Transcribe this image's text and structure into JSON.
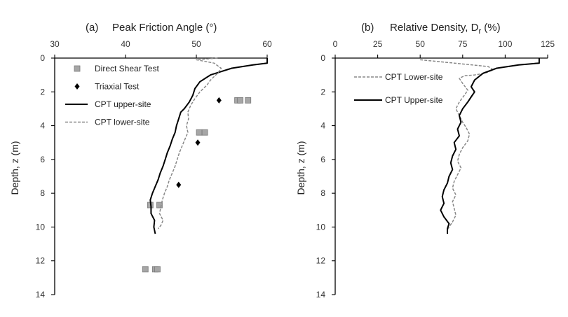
{
  "chart_data": [
    {
      "type": "line",
      "panel_label": "(a)",
      "title": "Peak Friction Angle (°)",
      "xlabel": "Peak Friction Angle (°)",
      "ylabel": "Depth, z  (m)",
      "x_axis_position": "top",
      "y_axis_inverted": true,
      "xlim": [
        30,
        60
      ],
      "ylim": [
        0,
        14
      ],
      "xticks": [
        30,
        40,
        50,
        60
      ],
      "yticks": [
        0,
        2,
        4,
        6,
        8,
        10,
        12,
        14
      ],
      "legend_position": "left",
      "series": [
        {
          "name": "Direct Shear Test",
          "kind": "scatter",
          "marker": "square",
          "color": "#a6a6a6",
          "points": [
            [
              55.8,
              2.5
            ],
            [
              56.2,
              2.5
            ],
            [
              57.3,
              2.5
            ],
            [
              50.4,
              4.4
            ],
            [
              51.2,
              4.4
            ],
            [
              43.5,
              8.7
            ],
            [
              44.8,
              8.7
            ],
            [
              42.8,
              12.5
            ],
            [
              44.2,
              12.5
            ],
            [
              44.5,
              12.5
            ]
          ]
        },
        {
          "name": "Triaxial Test",
          "kind": "scatter",
          "marker": "diamond",
          "color": "#000000",
          "points": [
            [
              53.2,
              2.5
            ],
            [
              50.2,
              5.0
            ],
            [
              47.5,
              7.5
            ]
          ]
        },
        {
          "name": "CPT upper-site",
          "kind": "line",
          "style": "solid",
          "color": "#000000",
          "points": [
            [
              60.0,
              0.0
            ],
            [
              60.0,
              0.3
            ],
            [
              58.0,
              0.4
            ],
            [
              55.0,
              0.6
            ],
            [
              52.0,
              1.0
            ],
            [
              50.5,
              1.4
            ],
            [
              49.8,
              1.8
            ],
            [
              49.5,
              2.2
            ],
            [
              49.0,
              2.6
            ],
            [
              48.3,
              3.0
            ],
            [
              47.8,
              3.2
            ],
            [
              47.5,
              3.6
            ],
            [
              47.2,
              4.0
            ],
            [
              47.0,
              4.4
            ],
            [
              46.6,
              4.8
            ],
            [
              46.3,
              5.2
            ],
            [
              45.9,
              5.6
            ],
            [
              45.6,
              6.0
            ],
            [
              45.3,
              6.4
            ],
            [
              44.9,
              6.8
            ],
            [
              44.6,
              7.2
            ],
            [
              44.2,
              7.6
            ],
            [
              43.8,
              8.0
            ],
            [
              43.5,
              8.4
            ],
            [
              43.6,
              8.8
            ],
            [
              43.6,
              9.2
            ],
            [
              44.1,
              9.6
            ],
            [
              44.0,
              10.0
            ],
            [
              44.2,
              10.4
            ]
          ]
        },
        {
          "name": "CPT lower-site",
          "kind": "line",
          "style": "dashed",
          "color": "#888888",
          "points": [
            [
              53.0,
              0.0
            ],
            [
              50.0,
              0.1
            ],
            [
              52.5,
              0.3
            ],
            [
              53.5,
              0.6
            ],
            [
              53.0,
              0.9
            ],
            [
              52.0,
              1.3
            ],
            [
              51.5,
              1.6
            ],
            [
              50.5,
              2.0
            ],
            [
              49.8,
              2.4
            ],
            [
              49.2,
              2.8
            ],
            [
              48.8,
              3.2
            ],
            [
              48.9,
              3.6
            ],
            [
              48.6,
              4.0
            ],
            [
              48.8,
              4.4
            ],
            [
              48.4,
              4.8
            ],
            [
              48.0,
              5.2
            ],
            [
              47.6,
              5.6
            ],
            [
              47.3,
              6.0
            ],
            [
              47.0,
              6.4
            ],
            [
              46.6,
              6.8
            ],
            [
              46.2,
              7.2
            ],
            [
              45.9,
              7.6
            ],
            [
              45.5,
              8.0
            ],
            [
              45.2,
              8.4
            ],
            [
              45.0,
              8.8
            ],
            [
              44.8,
              9.2
            ],
            [
              45.3,
              9.6
            ],
            [
              45.0,
              9.9
            ],
            [
              44.6,
              10.1
            ]
          ]
        }
      ]
    },
    {
      "type": "line",
      "panel_label": "(b)",
      "title": "Relative Density, Dr (%)",
      "title_main": "Relative Density, D",
      "title_sub": "r",
      "title_unit": " (%)",
      "xlabel": "Relative Density, Dr (%)",
      "ylabel": "Depth, z  (m)",
      "x_axis_position": "top",
      "y_axis_inverted": true,
      "xlim": [
        0,
        125
      ],
      "ylim": [
        0,
        14
      ],
      "xticks": [
        0,
        25,
        50,
        75,
        100,
        125
      ],
      "yticks": [
        0,
        2,
        4,
        6,
        8,
        10,
        12,
        14
      ],
      "legend_position": "left",
      "series": [
        {
          "name": "CPT Lower-site",
          "kind": "line",
          "style": "dashed",
          "color": "#888888",
          "points": [
            [
              50.0,
              0.1
            ],
            [
              70.0,
              0.3
            ],
            [
              90.0,
              0.5
            ],
            [
              93.0,
              0.7
            ],
            [
              88.0,
              0.9
            ],
            [
              82.0,
              1.0
            ],
            [
              76.0,
              1.05
            ],
            [
              73.0,
              1.2
            ],
            [
              75.0,
              1.5
            ],
            [
              78.0,
              1.9
            ],
            [
              76.0,
              2.2
            ],
            [
              73.0,
              2.6
            ],
            [
              71.0,
              3.0
            ],
            [
              73.0,
              3.4
            ],
            [
              75.0,
              3.8
            ],
            [
              77.0,
              4.1
            ],
            [
              79.0,
              4.5
            ],
            [
              78.0,
              4.9
            ],
            [
              75.0,
              5.3
            ],
            [
              73.0,
              5.7
            ],
            [
              72.0,
              6.1
            ],
            [
              74.0,
              6.5
            ],
            [
              72.0,
              6.9
            ],
            [
              70.0,
              7.3
            ],
            [
              69.0,
              7.7
            ],
            [
              71.0,
              8.1
            ],
            [
              69.0,
              8.5
            ],
            [
              70.0,
              8.9
            ],
            [
              71.0,
              9.3
            ],
            [
              69.0,
              9.7
            ],
            [
              67.0,
              10.0
            ],
            [
              66.0,
              10.2
            ]
          ]
        },
        {
          "name": "CPT Upper-site",
          "kind": "line",
          "style": "solid",
          "color": "#000000",
          "points": [
            [
              120.0,
              0.0
            ],
            [
              120.0,
              0.3
            ],
            [
              108.0,
              0.4
            ],
            [
              95.0,
              0.6
            ],
            [
              87.0,
              0.9
            ],
            [
              82.0,
              1.3
            ],
            [
              80.0,
              1.7
            ],
            [
              82.0,
              2.0
            ],
            [
              80.0,
              2.3
            ],
            [
              78.0,
              2.6
            ],
            [
              75.0,
              3.0
            ],
            [
              73.0,
              3.4
            ],
            [
              74.0,
              3.8
            ],
            [
              72.0,
              4.2
            ],
            [
              73.0,
              4.6
            ],
            [
              70.0,
              5.0
            ],
            [
              71.0,
              5.4
            ],
            [
              69.0,
              5.8
            ],
            [
              68.0,
              6.2
            ],
            [
              69.0,
              6.6
            ],
            [
              67.0,
              7.0
            ],
            [
              66.0,
              7.4
            ],
            [
              64.0,
              7.8
            ],
            [
              63.0,
              8.2
            ],
            [
              64.0,
              8.6
            ],
            [
              62.0,
              9.0
            ],
            [
              64.0,
              9.4
            ],
            [
              67.0,
              9.8
            ],
            [
              66.0,
              10.1
            ],
            [
              66.0,
              10.4
            ]
          ]
        }
      ]
    }
  ]
}
